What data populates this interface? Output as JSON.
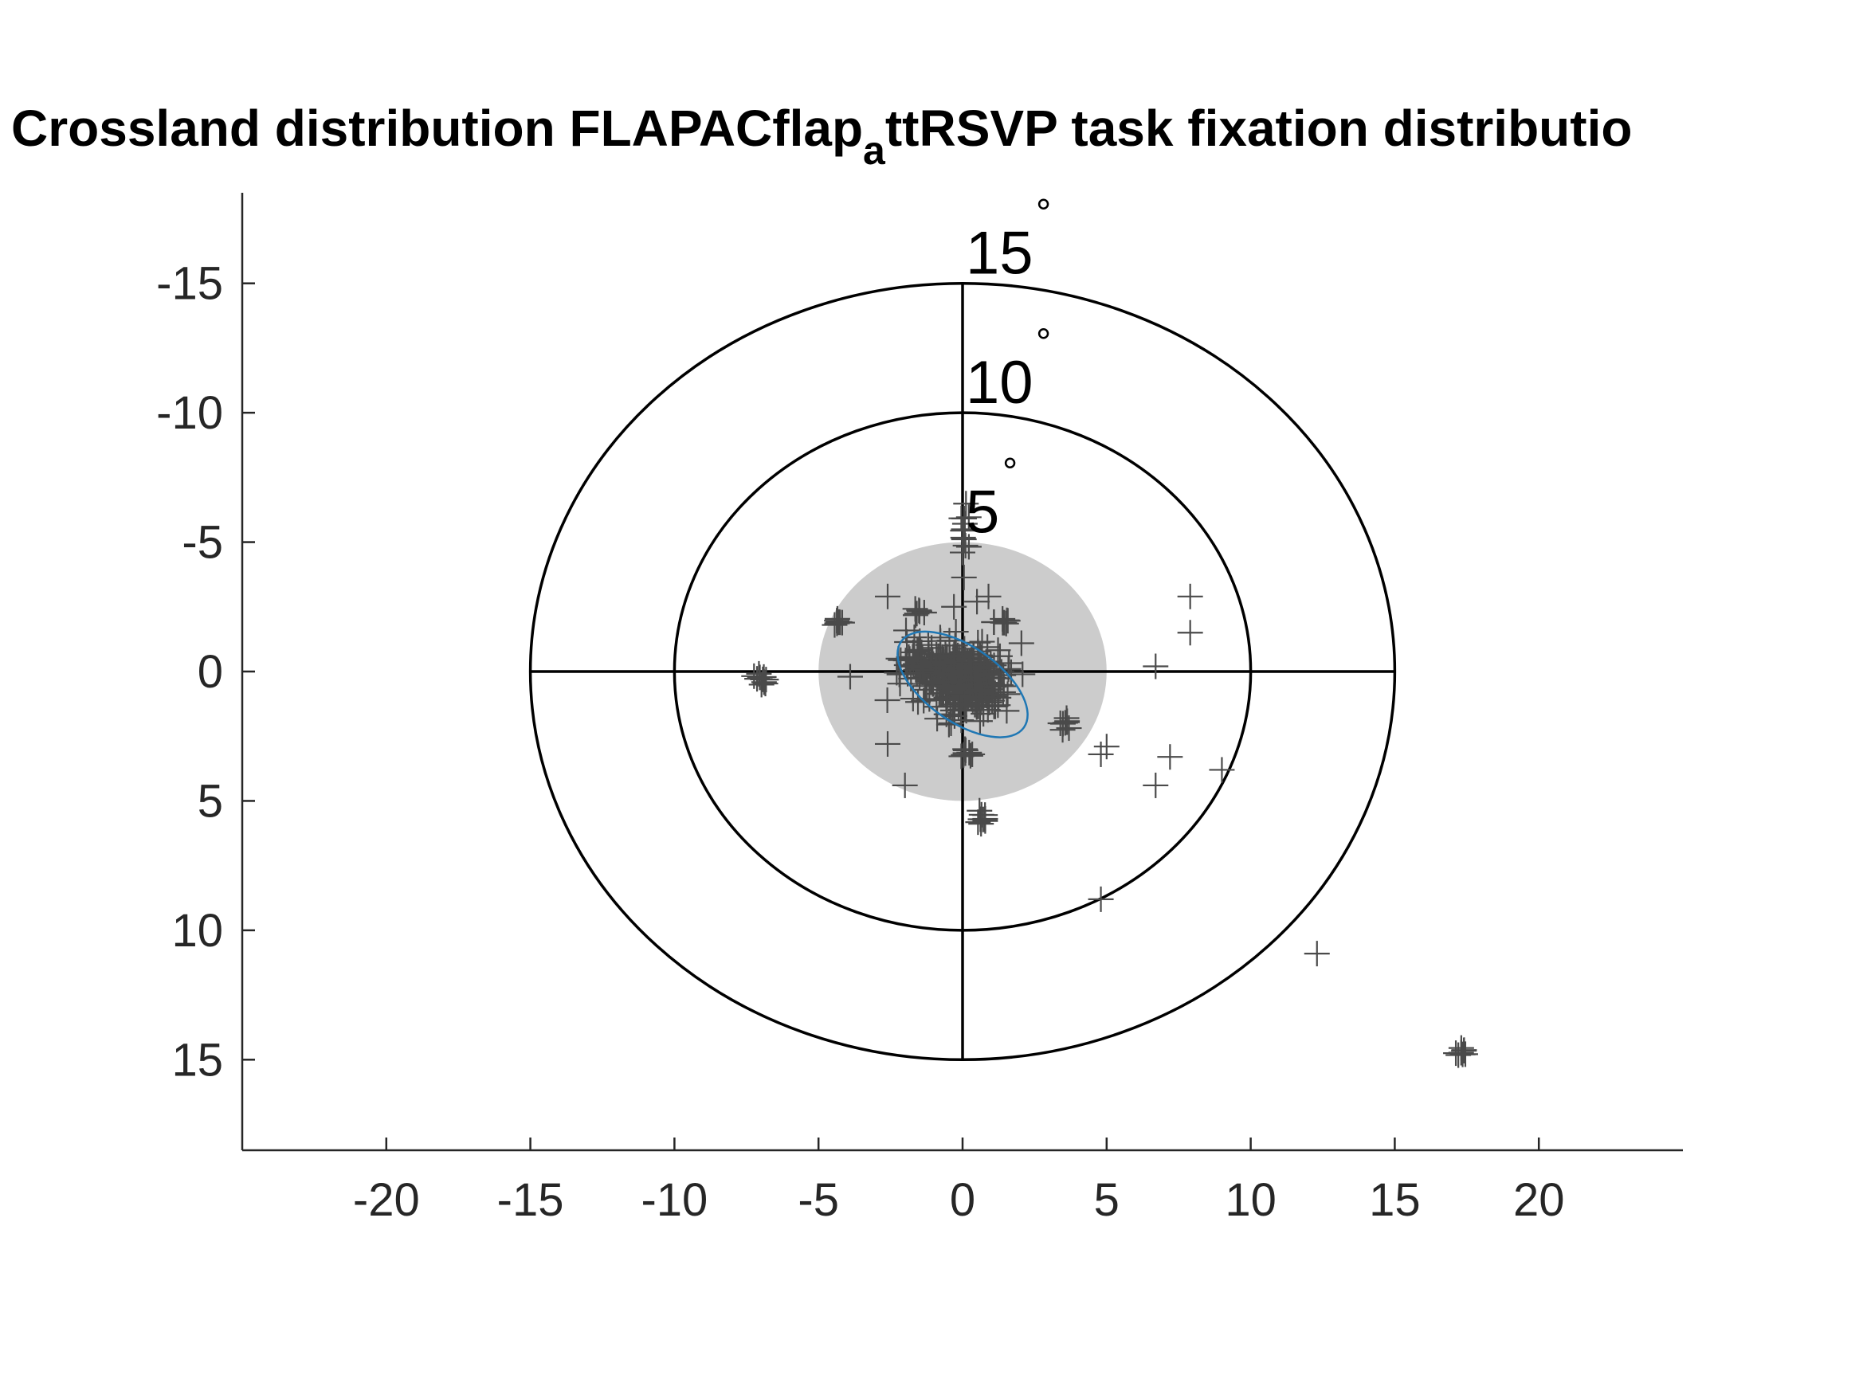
{
  "chart_data": {
    "type": "scatter",
    "title_main": "Crossland distribution FLAPACflap",
    "title_sub": "a",
    "title_tail": "ttRSVP task fixation distributio",
    "xlim": [
      -25,
      25
    ],
    "ylim": [
      18.5,
      -18.5
    ],
    "y_reversed": true,
    "x_ticks": [
      -20,
      -15,
      -10,
      -5,
      0,
      5,
      10,
      15,
      20
    ],
    "x_tick_labels": [
      "-20",
      "-15",
      "-10",
      "-5",
      "0",
      "5",
      "10",
      "15",
      "20"
    ],
    "y_ticks": [
      -15,
      -10,
      -5,
      0,
      5,
      10,
      15
    ],
    "y_tick_labels": [
      "-15",
      "-10",
      "-5",
      "0",
      "5",
      "10",
      "15"
    ],
    "rings": [
      {
        "radius": 5,
        "label": "5",
        "degree": "°"
      },
      {
        "radius": 10,
        "label": "10",
        "degree": "°"
      },
      {
        "radius": 15,
        "label": "15",
        "degree": "°"
      }
    ],
    "shaded_disk_radius": 5,
    "shaded_color": "#cccccc",
    "marker_color": "#4a4a4a",
    "ellipse": {
      "cx": 0,
      "cy": 0.5,
      "rx": 2.6,
      "ry": 1.45,
      "angle_deg": 35,
      "color": "#1f77b4"
    },
    "clusters": [
      {
        "x": 0.0,
        "y": 0.3,
        "sx": 0.75,
        "sy": 0.7,
        "n": 260
      },
      {
        "x": -1.5,
        "y": -0.4,
        "sx": 0.45,
        "sy": 0.35,
        "n": 45
      },
      {
        "x": 0.6,
        "y": 0.7,
        "sx": 0.45,
        "sy": 0.4,
        "n": 30
      },
      {
        "x": -7.0,
        "y": 0.3,
        "sx": 0.15,
        "sy": 0.2,
        "n": 10
      },
      {
        "x": -4.3,
        "y": -1.9,
        "sx": 0.1,
        "sy": 0.12,
        "n": 8
      },
      {
        "x": 1.4,
        "y": -1.9,
        "sx": 0.15,
        "sy": 0.12,
        "n": 8
      },
      {
        "x": -1.5,
        "y": -2.3,
        "sx": 0.15,
        "sy": 0.12,
        "n": 6
      },
      {
        "x": 0.1,
        "y": -5.6,
        "sx": 0.12,
        "sy": 0.6,
        "n": 12
      },
      {
        "x": 3.5,
        "y": 2.0,
        "sx": 0.12,
        "sy": 0.12,
        "n": 8
      },
      {
        "x": 0.1,
        "y": 3.1,
        "sx": 0.15,
        "sy": 0.12,
        "n": 8
      },
      {
        "x": 0.7,
        "y": 5.6,
        "sx": 0.12,
        "sy": 0.15,
        "n": 10
      },
      {
        "x": 17.3,
        "y": 14.7,
        "sx": 0.12,
        "sy": 0.2,
        "n": 8
      }
    ],
    "points": [
      [
        -2.6,
        -2.9
      ],
      [
        -0.3,
        -2.5
      ],
      [
        0.9,
        -2.9
      ],
      [
        0.5,
        -2.7
      ],
      [
        0.0,
        -4.6
      ],
      [
        -3.9,
        0.2
      ],
      [
        -2.6,
        2.8
      ],
      [
        -2.0,
        4.4
      ],
      [
        -0.4,
        2.0
      ],
      [
        7.9,
        -2.9
      ],
      [
        7.9,
        -1.5
      ],
      [
        6.7,
        -0.2
      ],
      [
        4.8,
        3.2
      ],
      [
        5.0,
        2.9
      ],
      [
        7.2,
        3.3
      ],
      [
        6.7,
        4.4
      ],
      [
        9.0,
        3.8
      ],
      [
        4.8,
        8.8
      ],
      [
        12.3,
        10.9
      ]
    ]
  }
}
